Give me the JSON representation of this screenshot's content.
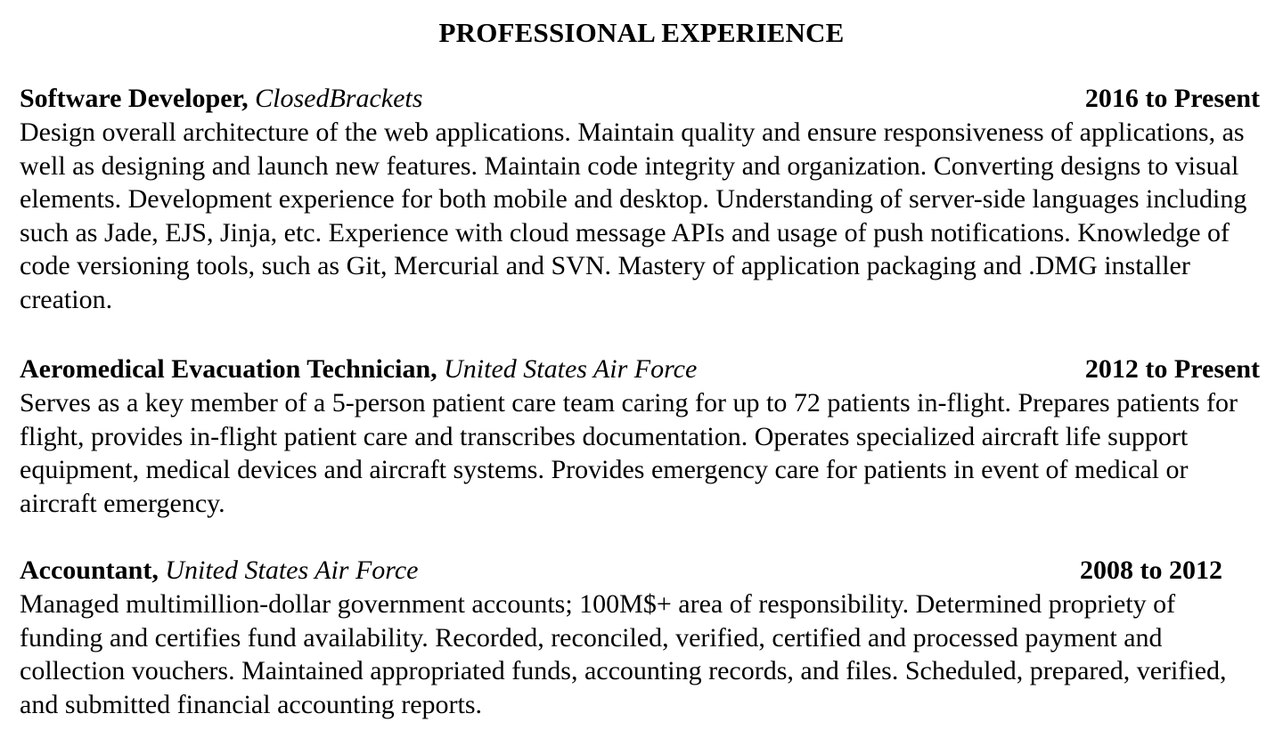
{
  "section": {
    "title": "PROFESSIONAL EXPERIENCE"
  },
  "jobs": [
    {
      "title": "Software Developer,",
      "organization": "ClosedBrackets",
      "dates": "2016 to Present",
      "description": "Design overall architecture of the web applications. Maintain quality and ensure responsiveness of applications, as well as designing and launch new features. Maintain code integrity and organization. Converting designs to visual elements. Development experience for both mobile and desktop. Understanding of server-side languages including such as Jade, EJS, Jinja, etc. Experience with cloud message APIs and usage of push notifications. Knowledge of code versioning tools, such as Git, Mercurial and SVN. Mastery of application packaging and .DMG installer creation."
    },
    {
      "title": "Aeromedical Evacuation Technician,",
      "organization": "United States Air Force",
      "dates": "2012 to Present",
      "description": "Serves as a key member of a 5-person patient care team caring for up to 72 patients in-flight. Prepares patients for flight, provides in-flight patient care and transcribes documentation. Operates specialized aircraft life support equipment, medical devices and aircraft systems. Provides emergency care for patients in event of medical or aircraft emergency."
    },
    {
      "title": "Accountant,",
      "organization": "United States Air Force",
      "dates": "2008 to 2012",
      "description": "Managed multimillion-dollar government accounts; 100M$+ area of responsibility. Determined propriety of funding and certifies fund availability. Recorded, reconciled, verified, certified and processed payment and collection vouchers. Maintained appropriated funds, accounting records, and files. Scheduled, prepared, verified, and submitted financial accounting reports."
    }
  ]
}
